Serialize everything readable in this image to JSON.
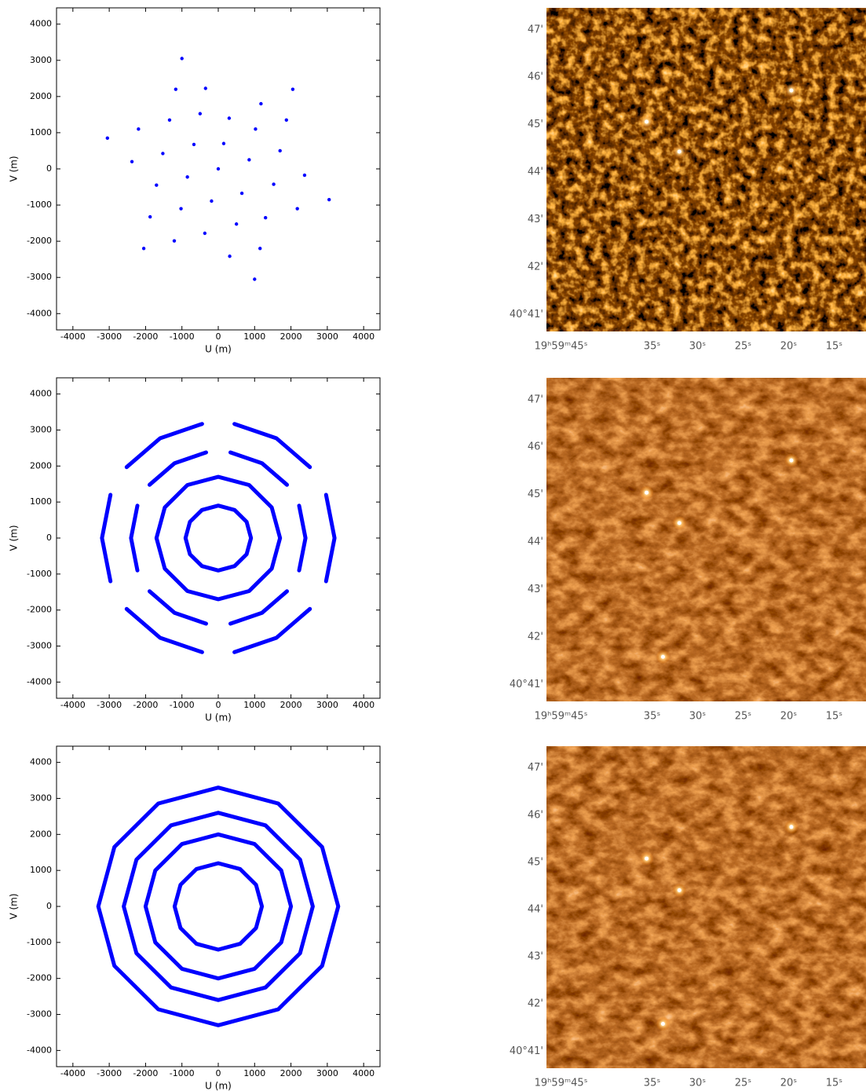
{
  "chart_data": [
    {
      "type": "scatter",
      "xlabel": "U (m)",
      "ylabel": "V (m)",
      "xlim": [
        -4450,
        4450
      ],
      "ylim": [
        -4450,
        4450
      ],
      "xticks": [
        -4000,
        -3000,
        -2000,
        -1000,
        0,
        1000,
        2000,
        3000,
        4000
      ],
      "yticks": [
        -4000,
        -3000,
        -2000,
        -1000,
        0,
        1000,
        2000,
        3000,
        4000
      ],
      "series": [
        {
          "color": "#0000ff",
          "x": [
            -3050,
            -2195,
            -1340,
            -1170,
            -1000,
            -350,
            300,
            1175,
            2050,
            1875,
            1700,
            2375,
            3050,
            2175,
            1300,
            1150,
            1000,
            315,
            -370,
            -1210,
            -2050,
            -1875,
            -1700,
            -2375,
            0,
            -500,
            1025,
            1525,
            500,
            -1025,
            -1525,
            -670,
            150,
            850,
            650,
            -185,
            -850
          ],
          "y": [
            850,
            1100,
            1350,
            2200,
            3050,
            2225,
            1400,
            1800,
            2200,
            1350,
            500,
            -175,
            -850,
            -1100,
            -1350,
            -2200,
            -3050,
            -2415,
            -1780,
            -1990,
            -2200,
            -1325,
            -450,
            200,
            0,
            1525,
            1100,
            -425,
            -1525,
            -1100,
            425,
            675,
            700,
            250,
            -675,
            -890,
            -225
          ]
        }
      ]
    },
    {
      "type": "line",
      "xlabel": "U (m)",
      "ylabel": "V (m)",
      "xlim": [
        -4450,
        4450
      ],
      "ylim": [
        -4450,
        4450
      ],
      "xticks": [
        -4000,
        -3000,
        -2000,
        -1000,
        0,
        1000,
        2000,
        3000,
        4000
      ],
      "yticks": [
        -4000,
        -3000,
        -2000,
        -1000,
        0,
        1000,
        2000,
        3000,
        4000
      ],
      "series": [
        {
          "color": "#0000ff",
          "x": [
            2966,
            3200,
            2966,
            null,
            2225,
            2400,
            2225,
            null,
            2522,
            1600,
            445,
            null,
            1891,
            1200,
            334,
            null,
            -445,
            -1600,
            -2522,
            null,
            -334,
            -1200,
            -1891,
            null,
            -2966,
            -3200,
            -2966,
            null,
            -2225,
            -2400,
            -2225,
            null,
            -2522,
            -1600,
            -445,
            null,
            -1891,
            -1200,
            -334,
            null,
            445,
            1600,
            2522,
            null,
            334,
            1200,
            1891,
            null,
            1700,
            1472,
            850,
            0,
            -850,
            -1472,
            -1700,
            -1472,
            -850,
            0,
            850,
            1472,
            1700,
            null,
            900,
            779,
            450,
            0,
            -450,
            -779,
            -900,
            -779,
            -450,
            0,
            450,
            779,
            900
          ],
          "y": [
            -1199,
            0,
            1199,
            null,
            -899,
            0,
            899,
            null,
            1970,
            2771,
            3169,
            null,
            1478,
            2078,
            2377,
            null,
            3169,
            2771,
            1970,
            null,
            2377,
            2078,
            1478,
            null,
            1199,
            0,
            -1199,
            null,
            899,
            0,
            -899,
            null,
            -1970,
            -2771,
            -3169,
            null,
            -1478,
            -2078,
            -2377,
            null,
            -3169,
            -2771,
            -1970,
            null,
            -2377,
            -2078,
            -1478,
            null,
            0,
            850,
            1472,
            1700,
            1472,
            850,
            0,
            -850,
            -1472,
            -1700,
            -1472,
            -850,
            0,
            null,
            0,
            450,
            779,
            900,
            779,
            450,
            0,
            -450,
            -779,
            -900,
            -779,
            -450,
            0
          ]
        }
      ]
    },
    {
      "type": "line",
      "xlabel": "U (m)",
      "ylabel": "V (m)",
      "xlim": [
        -4450,
        4450
      ],
      "ylim": [
        -4450,
        4450
      ],
      "xticks": [
        -4000,
        -3000,
        -2000,
        -1000,
        0,
        1000,
        2000,
        3000,
        4000
      ],
      "yticks": [
        -4000,
        -3000,
        -2000,
        -1000,
        0,
        1000,
        2000,
        3000,
        4000
      ],
      "series": [
        {
          "color": "#0000ff",
          "x": [
            2858,
            3300,
            2858,
            null,
            2252,
            2600,
            2252,
            null,
            2858,
            1650,
            0,
            null,
            2252,
            1300,
            0,
            null,
            0,
            -1650,
            -2858,
            null,
            0,
            -1300,
            -2252,
            null,
            -2858,
            -3300,
            -2858,
            null,
            -2252,
            -2600,
            -2252,
            null,
            -2858,
            -1650,
            0,
            null,
            -2252,
            -1300,
            0,
            null,
            0,
            1650,
            2858,
            null,
            0,
            1300,
            2252,
            null,
            2000,
            1732,
            1000,
            0,
            -1000,
            -1732,
            -2000,
            -1732,
            -1000,
            0,
            1000,
            1732,
            2000,
            null,
            1200,
            1039,
            600,
            0,
            -600,
            -1039,
            -1200,
            -1039,
            -600,
            0,
            600,
            1039,
            1200
          ],
          "y": [
            -1650,
            0,
            1650,
            null,
            -1300,
            0,
            1300,
            null,
            1650,
            2858,
            3300,
            null,
            1300,
            2252,
            2600,
            null,
            3300,
            2858,
            1650,
            null,
            2600,
            2252,
            1300,
            null,
            1650,
            0,
            -1650,
            null,
            1300,
            0,
            -1300,
            null,
            -1650,
            -2858,
            -3300,
            null,
            -1300,
            -2252,
            -2600,
            null,
            -3300,
            -2858,
            -1650,
            null,
            -2600,
            -2252,
            -1300,
            null,
            0,
            1000,
            1732,
            2000,
            1732,
            1000,
            0,
            -1000,
            -1732,
            -2000,
            -1732,
            -1000,
            0,
            null,
            0,
            600,
            1039,
            1200,
            1039,
            600,
            0,
            -600,
            -1039,
            -1200,
            -1039,
            -600,
            0
          ]
        }
      ]
    },
    {
      "type": "image",
      "xlim": [
        46.6,
        11.5
      ],
      "ylim": [
        40.64,
        47.46
      ],
      "xticks": [
        {
          "value": 45,
          "label": "19ʰ59ᵐ45ˢ"
        },
        {
          "value": 35,
          "label": "35ˢ"
        },
        {
          "value": 30,
          "label": "30ˢ"
        },
        {
          "value": 25,
          "label": "25ˢ"
        },
        {
          "value": 20,
          "label": "20ˢ"
        },
        {
          "value": 15,
          "label": "15ˢ"
        }
      ],
      "yticks": [
        {
          "value": 47,
          "label": "47'"
        },
        {
          "value": 46,
          "label": "46'"
        },
        {
          "value": 45,
          "label": "45'"
        },
        {
          "value": 44,
          "label": "44'"
        },
        {
          "value": 43,
          "label": "43'"
        },
        {
          "value": 42,
          "label": "42'"
        },
        {
          "value": 41,
          "label": "40°41'"
        }
      ],
      "series": [
        {
          "color": "#ffffff",
          "x": [
            35.6,
            32.0,
            19.7
          ],
          "y": [
            45.06,
            44.43,
            45.72
          ]
        }
      ]
    },
    {
      "type": "image",
      "xlim": [
        46.6,
        11.5
      ],
      "ylim": [
        40.64,
        47.46
      ],
      "xticks": [
        {
          "value": 45,
          "label": "19ʰ59ᵐ45ˢ"
        },
        {
          "value": 35,
          "label": "35ˢ"
        },
        {
          "value": 30,
          "label": "30ˢ"
        },
        {
          "value": 25,
          "label": "25ˢ"
        },
        {
          "value": 20,
          "label": "20ˢ"
        },
        {
          "value": 15,
          "label": "15ˢ"
        }
      ],
      "yticks": [
        {
          "value": 47,
          "label": "47'"
        },
        {
          "value": 46,
          "label": "46'"
        },
        {
          "value": 45,
          "label": "45'"
        },
        {
          "value": 44,
          "label": "44'"
        },
        {
          "value": 43,
          "label": "43'"
        },
        {
          "value": 42,
          "label": "42'"
        },
        {
          "value": 41,
          "label": "40°41'"
        }
      ],
      "series": [
        {
          "color": "#ffffff",
          "x": [
            35.6,
            32.0,
            19.7,
            33.8
          ],
          "y": [
            45.04,
            44.4,
            45.72,
            41.58
          ]
        }
      ]
    },
    {
      "type": "image",
      "xlim": [
        46.6,
        11.5
      ],
      "ylim": [
        40.64,
        47.46
      ],
      "xticks": [
        {
          "value": 45,
          "label": "19ʰ59ᵐ45ˢ"
        },
        {
          "value": 35,
          "label": "35ˢ"
        },
        {
          "value": 30,
          "label": "30ˢ"
        },
        {
          "value": 25,
          "label": "25ˢ"
        },
        {
          "value": 20,
          "label": "20ˢ"
        },
        {
          "value": 15,
          "label": "15ˢ"
        }
      ],
      "yticks": [
        {
          "value": 47,
          "label": "47'"
        },
        {
          "value": 46,
          "label": "46'"
        },
        {
          "value": 45,
          "label": "45'"
        },
        {
          "value": 44,
          "label": "44'"
        },
        {
          "value": 43,
          "label": "43'"
        },
        {
          "value": 42,
          "label": "42'"
        },
        {
          "value": 41,
          "label": "40°41'"
        }
      ],
      "series": [
        {
          "color": "#ffffff",
          "x": [
            35.6,
            32.0,
            19.7,
            33.8
          ],
          "y": [
            45.08,
            44.41,
            45.75,
            41.58
          ]
        }
      ]
    }
  ]
}
